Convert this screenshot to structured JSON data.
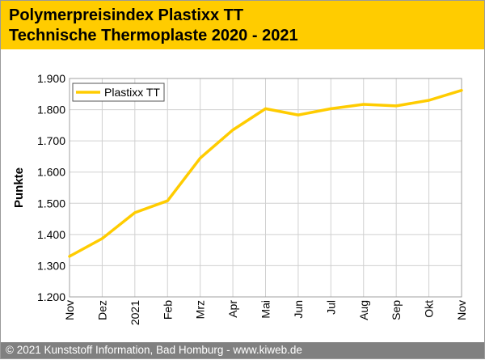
{
  "header": {
    "title": "Polymerpreisindex Plastixx TT",
    "subtitle": "Technische Thermoplaste 2020 - 2021"
  },
  "footer": {
    "text": "© 2021 Kunststoff Information, Bad Homburg - www.kiweb.de"
  },
  "colors": {
    "header_bg": "#ffcc00",
    "line": "#ffcc00",
    "footer_bg": "#808080"
  },
  "chart_data": {
    "type": "line",
    "title": "",
    "xlabel": "",
    "ylabel": "Punkte",
    "categories": [
      "Nov",
      "Dez",
      "2021",
      "Feb",
      "Mrz",
      "Apr",
      "Mai",
      "Jun",
      "Jul",
      "Aug",
      "Sep",
      "Okt",
      "Nov"
    ],
    "yticks": [
      "1.200",
      "1.300",
      "1.400",
      "1.500",
      "1.600",
      "1.700",
      "1.800",
      "1.900"
    ],
    "ylim": [
      1200,
      1900
    ],
    "grid": true,
    "legend_position": "top-left",
    "series": [
      {
        "name": "Plastixx TT",
        "values": [
          1330,
          1387,
          1470,
          1508,
          1645,
          1735,
          1803,
          1783,
          1803,
          1817,
          1812,
          1830,
          1862
        ]
      }
    ]
  }
}
